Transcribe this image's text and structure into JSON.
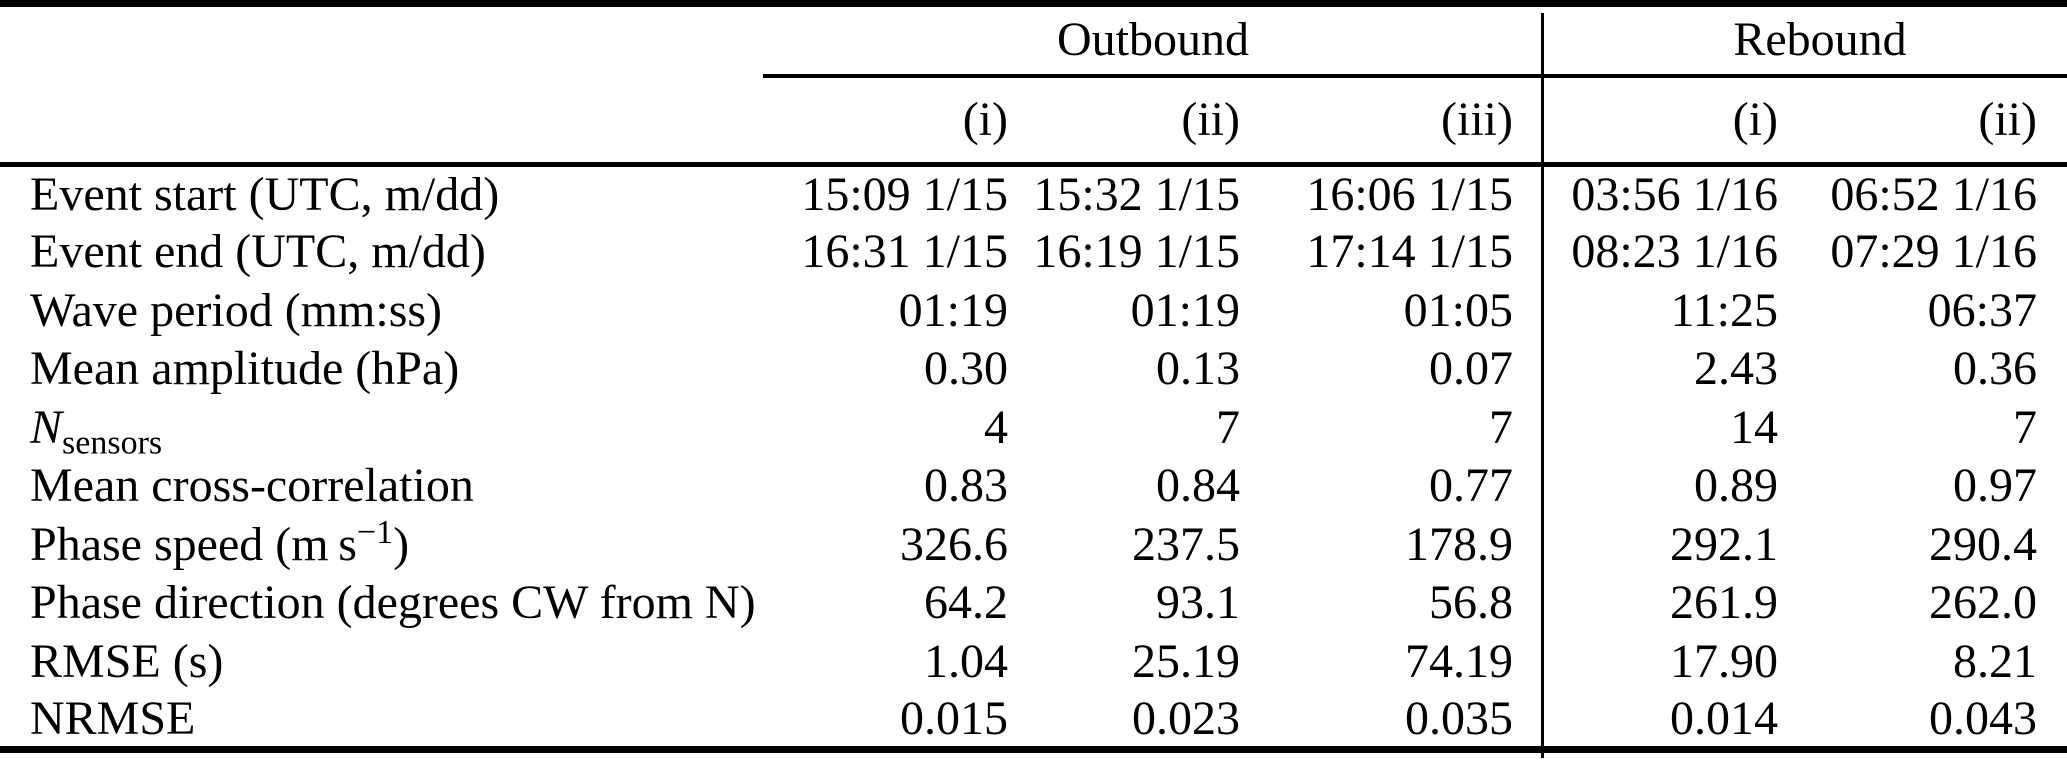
{
  "colors": {
    "background": "#ffffff",
    "text": "#000000",
    "rules": "#000000"
  },
  "table": {
    "group_headers": [
      {
        "label": "Outbound",
        "colspan": 3
      },
      {
        "label": "Rebound",
        "colspan": 2
      }
    ],
    "sub_headers": [
      "(i)",
      "(ii)",
      "(iii)",
      "(i)",
      "(ii)"
    ],
    "rows": [
      {
        "label": "Event start (UTC, m/dd)",
        "values": [
          "15:09 1/15",
          "15:32 1/15",
          "16:06 1/15",
          "03:56 1/16",
          "06:52 1/16"
        ]
      },
      {
        "label": "Event end (UTC, m/dd)",
        "values": [
          "16:31 1/15",
          "16:19 1/15",
          "17:14 1/15",
          "08:23 1/16",
          "07:29 1/16"
        ]
      },
      {
        "label": "Wave period (mm:ss)",
        "values": [
          "01:19",
          "01:19",
          "01:05",
          "11:25",
          "06:37"
        ]
      },
      {
        "label": "Mean amplitude (hPa)",
        "values": [
          "0.30",
          "0.13",
          "0.07",
          "2.43",
          "0.36"
        ]
      },
      {
        "label_main": "N",
        "label_sub": "sensors",
        "values": [
          "4",
          "7",
          "7",
          "14",
          "7"
        ]
      },
      {
        "label": "Mean cross-correlation",
        "values": [
          "0.83",
          "0.84",
          "0.77",
          "0.89",
          "0.97"
        ]
      },
      {
        "label_main": "Phase speed (m s",
        "label_sup": "−1",
        "label_post": ")",
        "values": [
          "326.6",
          "237.5",
          "178.9",
          "292.1",
          "290.4"
        ]
      },
      {
        "label": "Phase direction (degrees CW from N)",
        "values": [
          "64.2",
          "93.1",
          "56.8",
          "261.9",
          "262.0"
        ]
      },
      {
        "label": "RMSE (s)",
        "values": [
          "1.04",
          "25.19",
          "74.19",
          "17.90",
          "8.21"
        ]
      },
      {
        "label": "NRMSE",
        "values": [
          "0.015",
          "0.023",
          "0.035",
          "0.014",
          "0.043"
        ]
      }
    ]
  }
}
